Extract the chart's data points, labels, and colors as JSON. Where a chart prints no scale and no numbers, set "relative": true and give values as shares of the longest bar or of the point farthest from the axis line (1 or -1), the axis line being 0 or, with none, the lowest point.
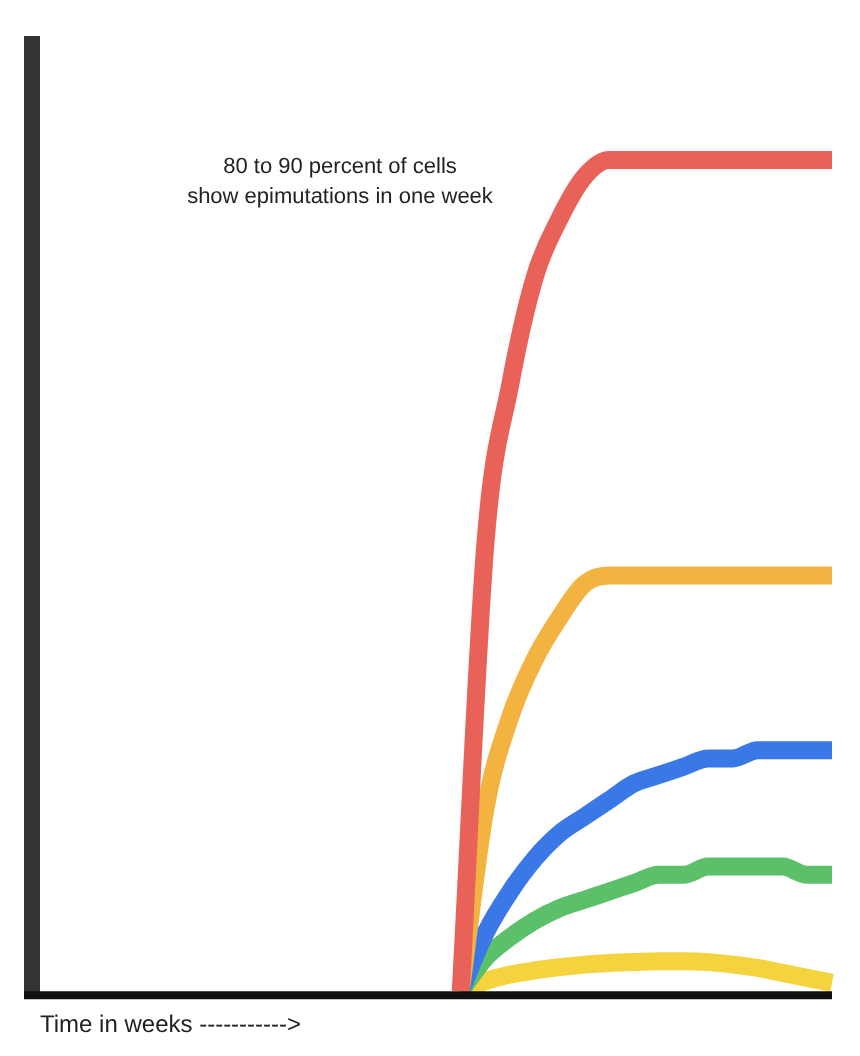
{
  "chart_data": {
    "type": "line",
    "relative": true,
    "xlabel": "Time in weeks ----------->",
    "annotations": [
      "80 to 90 percent of cells\nshow epimutations in one week"
    ],
    "legend": false,
    "grid": false,
    "categories": [
      null,
      null,
      null,
      null,
      null,
      null,
      null,
      null,
      null,
      null,
      null,
      null,
      null,
      null,
      null,
      null,
      null,
      null,
      null,
      null,
      null,
      null,
      null,
      null,
      null,
      null,
      null,
      null,
      null,
      null,
      null,
      null,
      null
    ],
    "series": [
      {
        "color": "#e8625a",
        "values": [
          null,
          null,
          null,
          null,
          null,
          null,
          null,
          null,
          null,
          null,
          null,
          null,
          null,
          null,
          null,
          null,
          null,
          0,
          0.54,
          0.73,
          0.86,
          0.93,
          0.98,
          1,
          1,
          1,
          1,
          1,
          1,
          1,
          1,
          1,
          1
        ]
      },
      {
        "color": "#f2b340",
        "values": [
          null,
          null,
          null,
          null,
          null,
          null,
          null,
          null,
          null,
          null,
          null,
          null,
          null,
          null,
          null,
          null,
          null,
          0,
          0.22,
          0.33,
          0.4,
          0.45,
          0.49,
          0.5,
          0.5,
          0.5,
          0.5,
          0.5,
          0.5,
          0.5,
          0.5,
          0.5,
          0.5
        ]
      },
      {
        "color": "#3a78e8",
        "values": [
          null,
          null,
          null,
          null,
          null,
          null,
          null,
          null,
          null,
          null,
          null,
          null,
          null,
          null,
          null,
          null,
          null,
          0,
          0.07,
          0.12,
          0.16,
          0.19,
          0.21,
          0.23,
          0.25,
          0.26,
          0.27,
          0.28,
          0.28,
          0.29,
          0.29,
          0.29,
          0.29
        ]
      },
      {
        "color": "#5cbf6a",
        "values": [
          null,
          null,
          null,
          null,
          null,
          null,
          null,
          null,
          null,
          null,
          null,
          null,
          null,
          null,
          null,
          null,
          null,
          0,
          0.04,
          0.065,
          0.085,
          0.1,
          0.11,
          0.12,
          0.13,
          0.14,
          0.14,
          0.15,
          0.15,
          0.15,
          0.15,
          0.14,
          0.14
        ]
      },
      {
        "color": "#f5d33f",
        "values": [
          null,
          null,
          null,
          null,
          null,
          null,
          null,
          null,
          null,
          null,
          null,
          null,
          null,
          null,
          null,
          null,
          null,
          0,
          0.012,
          0.02,
          0.025,
          0.029,
          0.032,
          0.034,
          0.035,
          0.036,
          0.036,
          0.035,
          0.032,
          0.028,
          0.022,
          0.016,
          0.01
        ]
      }
    ]
  }
}
